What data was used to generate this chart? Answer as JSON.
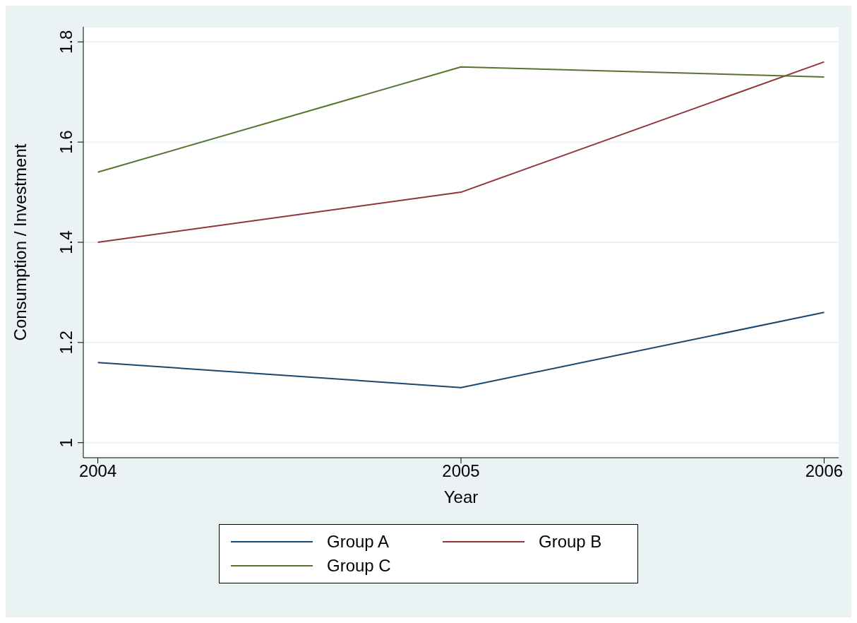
{
  "chart_data": {
    "type": "line",
    "xlabel": "Year",
    "ylabel": "Consumption / Investment",
    "x": [
      2004,
      2005,
      2006
    ],
    "series": [
      {
        "name": "Group A",
        "color": "#1a476f",
        "values": [
          1.16,
          1.11,
          1.26
        ]
      },
      {
        "name": "Group B",
        "color": "#90353b",
        "values": [
          1.4,
          1.5,
          1.76
        ]
      },
      {
        "name": "Group C",
        "color": "#55752f",
        "values": [
          1.54,
          1.75,
          1.73
        ]
      }
    ],
    "xlim": [
      2003.96,
      2006.04
    ],
    "xticks": [
      2004,
      2005,
      2006
    ],
    "ylim": [
      0.97,
      1.83
    ],
    "yticks": [
      1,
      1.2,
      1.4,
      1.6,
      1.8
    ],
    "grid": "y",
    "legend": "bottom",
    "marker": "none",
    "line_style": "solid"
  }
}
